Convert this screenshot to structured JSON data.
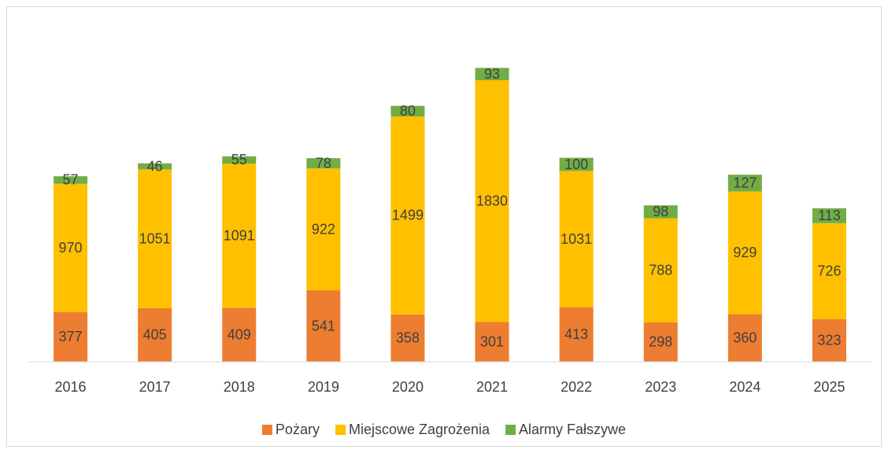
{
  "chart_data": {
    "type": "stacked_bar",
    "categories": [
      "2016",
      "2017",
      "2018",
      "2019",
      "2020",
      "2021",
      "2022",
      "2023",
      "2024",
      "2025"
    ],
    "series": [
      {
        "name": "Pożary",
        "color": "#ED7D31",
        "values": [
          377,
          405,
          409,
          541,
          358,
          301,
          413,
          298,
          360,
          323
        ]
      },
      {
        "name": "Miejscowe Zagrożenia",
        "color": "#FFC000",
        "values": [
          970,
          1051,
          1091,
          922,
          1499,
          1830,
          1031,
          788,
          929,
          726
        ]
      },
      {
        "name": "Alarmy Fałszywe",
        "color": "#70AD47",
        "values": [
          57,
          46,
          55,
          78,
          80,
          93,
          100,
          98,
          127,
          113
        ]
      }
    ],
    "ylim": [
      0,
      2500
    ],
    "legend": "bottom"
  }
}
